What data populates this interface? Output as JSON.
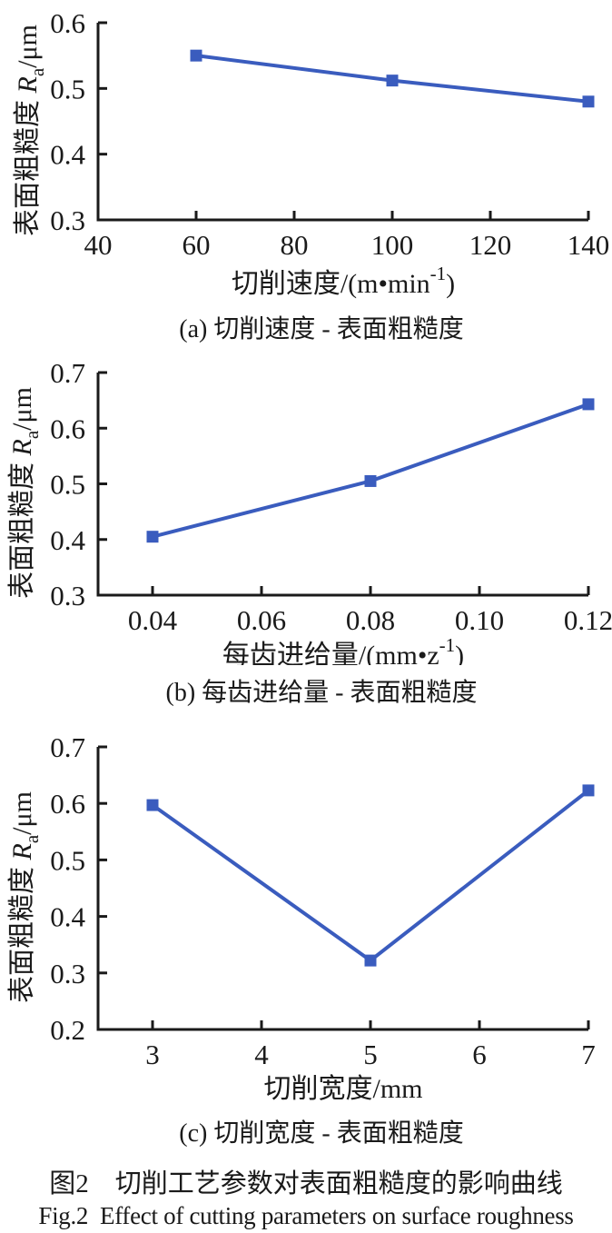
{
  "figure": {
    "caption_cn": "图2　切削工艺参数对表面粗糙度的影响曲线",
    "caption_en": "Fig.2  Effect of cutting parameters on surface roughness"
  },
  "colors": {
    "line": "#3a5cbe",
    "axis": "#1a1a1a",
    "text": "#1a1a1a"
  },
  "chart_data": [
    {
      "type": "line",
      "caption": "(a) 切削速度 - 表面粗糙度",
      "xlabel": {
        "pre": "切削速度/(m•min",
        "sup": "-1",
        "post": ")"
      },
      "ylabel": {
        "pre": "表面粗糙度 ",
        "italic": "R",
        "sub": "a",
        "post": "/μm"
      },
      "xlim": [
        40,
        140
      ],
      "ylim": [
        0.3,
        0.6
      ],
      "xticks": [
        40,
        60,
        80,
        100,
        120,
        140
      ],
      "xtick_labels": [
        "40",
        "60",
        "80",
        "100",
        "120",
        "140"
      ],
      "yticks": [
        0.3,
        0.4,
        0.5,
        0.6
      ],
      "ytick_labels": [
        "0.3",
        "0.4",
        "0.5",
        "0.6"
      ],
      "grid": false,
      "marker": "square",
      "series": [
        {
          "name": "Ra",
          "x": [
            60,
            100,
            140
          ],
          "y": [
            0.55,
            0.512,
            0.48
          ]
        }
      ]
    },
    {
      "type": "line",
      "caption": "(b) 每齿进给量 - 表面粗糙度",
      "xlabel": {
        "pre": "每齿进给量/(mm•z",
        "sup": "-1",
        "post": ")"
      },
      "ylabel": {
        "pre": "表面粗糙度 ",
        "italic": "R",
        "sub": "a",
        "post": "/μm"
      },
      "xlim": [
        0.03,
        0.12
      ],
      "ylim": [
        0.3,
        0.7
      ],
      "xticks": [
        0.04,
        0.06,
        0.08,
        0.1,
        0.12
      ],
      "xtick_labels": [
        "0.04",
        "0.06",
        "0.08",
        "0.10",
        "0.12"
      ],
      "yticks": [
        0.3,
        0.4,
        0.5,
        0.6,
        0.7
      ],
      "ytick_labels": [
        "0.3",
        "0.4",
        "0.5",
        "0.6",
        "0.7"
      ],
      "grid": false,
      "marker": "square",
      "series": [
        {
          "name": "Ra",
          "x": [
            0.04,
            0.08,
            0.12
          ],
          "y": [
            0.405,
            0.505,
            0.643
          ]
        }
      ]
    },
    {
      "type": "line",
      "caption": "(c) 切削宽度 - 表面粗糙度",
      "xlabel": {
        "pre": "切削宽度/mm",
        "sup": "",
        "post": ""
      },
      "ylabel": {
        "pre": "表面粗糙度 ",
        "italic": "R",
        "sub": "a",
        "post": "/μm"
      },
      "xlim": [
        2.5,
        7
      ],
      "ylim": [
        0.2,
        0.7
      ],
      "xticks": [
        3,
        4,
        5,
        6,
        7
      ],
      "xtick_labels": [
        "3",
        "4",
        "5",
        "6",
        "7"
      ],
      "yticks": [
        0.2,
        0.3,
        0.4,
        0.5,
        0.6,
        0.7
      ],
      "ytick_labels": [
        "0.2",
        "0.3",
        "0.4",
        "0.5",
        "0.6",
        "0.7"
      ],
      "grid": false,
      "marker": "square",
      "series": [
        {
          "name": "Ra",
          "x": [
            3,
            5,
            7
          ],
          "y": [
            0.597,
            0.322,
            0.623
          ]
        }
      ]
    }
  ]
}
